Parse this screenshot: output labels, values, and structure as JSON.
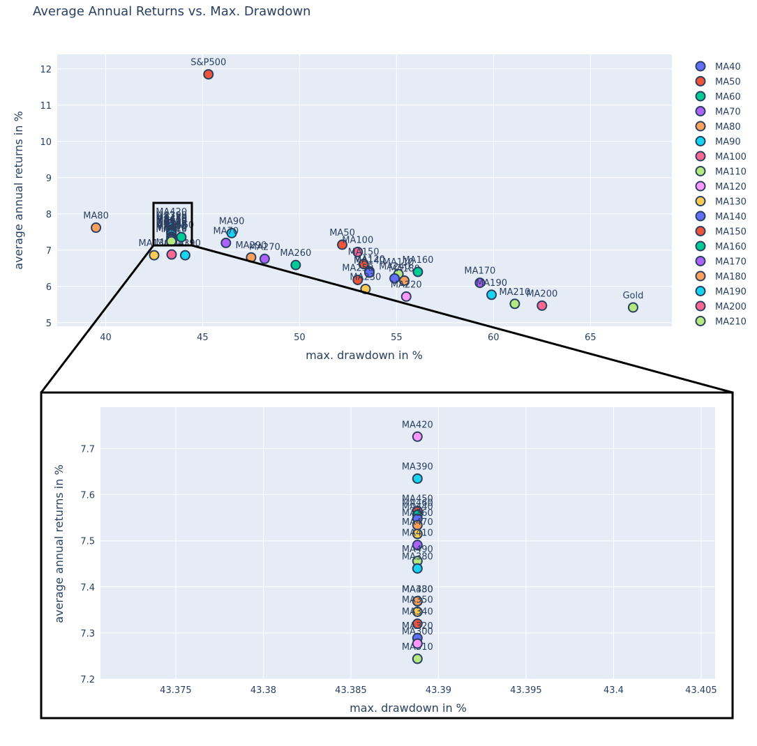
{
  "chart_data": [
    {
      "type": "scatter",
      "title": "Average Annual Returns vs. Max. Drawdown",
      "xlabel": "max. drawdown in %",
      "ylabel": "average annual returns in %",
      "xlim": [
        37.5,
        69.2
      ],
      "ylim": [
        4.9,
        12.4
      ],
      "xticks": [
        40,
        45,
        50,
        55,
        60,
        65
      ],
      "yticks": [
        5,
        6,
        7,
        8,
        9,
        10,
        11,
        12
      ],
      "grid": true,
      "legend_position": "right",
      "points": [
        {
          "label": "S&P500",
          "x": 45.3,
          "y": 11.85,
          "color": "#EF553B"
        },
        {
          "label": "MA80",
          "x": 39.5,
          "y": 7.62,
          "color": "#FFA15A"
        },
        {
          "label": "MA90",
          "x": 46.5,
          "y": 7.47,
          "color": "#19D3F3"
        },
        {
          "label": "MA70",
          "x": 46.2,
          "y": 7.2,
          "color": "#AB63FA"
        },
        {
          "label": "MA290",
          "x": 47.5,
          "y": 6.8,
          "color": "#FFA15A"
        },
        {
          "label": "MA270",
          "x": 48.2,
          "y": 6.76,
          "color": "#AB63FA"
        },
        {
          "label": "MA260",
          "x": 49.8,
          "y": 6.59,
          "color": "#00CC96"
        },
        {
          "label": "MA50",
          "x": 52.2,
          "y": 7.15,
          "color": "#EF553B"
        },
        {
          "label": "MA100",
          "x": 53.0,
          "y": 6.95,
          "color": "#FF6692"
        },
        {
          "label": "MA150",
          "x": 53.3,
          "y": 6.62,
          "color": "#EF553B"
        },
        {
          "label": "MA120",
          "x": 53.6,
          "y": 6.42,
          "color": "#FF97FF"
        },
        {
          "label": "MA140",
          "x": 53.6,
          "y": 6.38,
          "color": "#636EFA"
        },
        {
          "label": "MA250",
          "x": 53.0,
          "y": 6.18,
          "color": "#EF553B"
        },
        {
          "label": "MA230",
          "x": 53.4,
          "y": 5.93,
          "color": "#FECB52"
        },
        {
          "label": "MA110",
          "x": 55.1,
          "y": 6.34,
          "color": "#B6E880"
        },
        {
          "label": "MA240",
          "x": 54.9,
          "y": 6.22,
          "color": "#636EFA"
        },
        {
          "label": "MA180",
          "x": 55.4,
          "y": 6.16,
          "color": "#FFA15A"
        },
        {
          "label": "MA160",
          "x": 56.1,
          "y": 6.4,
          "color": "#00CC96"
        },
        {
          "label": "MA220",
          "x": 55.5,
          "y": 5.72,
          "color": "#FF97FF"
        },
        {
          "label": "MA170",
          "x": 59.3,
          "y": 6.1,
          "color": "#AB63FA"
        },
        {
          "label": "MA190",
          "x": 59.9,
          "y": 5.77,
          "color": "#19D3F3"
        },
        {
          "label": "MA210",
          "x": 61.1,
          "y": 5.52,
          "color": "#B6E880"
        },
        {
          "label": "MA200",
          "x": 62.5,
          "y": 5.47,
          "color": "#FF6692"
        },
        {
          "label": "Gold",
          "x": 67.2,
          "y": 5.42,
          "color": "#B6E880"
        },
        {
          "label": "MA130",
          "x": 42.5,
          "y": 6.86,
          "color": "#FECB52"
        },
        {
          "label": "MA200",
          "x": 43.4,
          "y": 6.88,
          "color": "#FF6692"
        },
        {
          "label": "MA390",
          "x": 44.1,
          "y": 6.86,
          "color": "#19D3F3"
        },
        {
          "label": "MA60",
          "x": 43.9,
          "y": 7.36,
          "color": "#00CC96"
        },
        {
          "label": "MA420",
          "x": 43.389,
          "y": 7.726,
          "color": "#FF97FF"
        },
        {
          "label": "MA390",
          "x": 43.389,
          "y": 7.635,
          "color": "#19D3F3"
        },
        {
          "label": "MA450",
          "x": 43.389,
          "y": 7.565,
          "color": "#EF553B"
        },
        {
          "label": "MA440",
          "x": 43.389,
          "y": 7.548,
          "color": "#636EFA"
        },
        {
          "label": "MA470",
          "x": 43.389,
          "y": 7.515,
          "color": "#FECB52"
        },
        {
          "label": "MA410",
          "x": 43.389,
          "y": 7.491,
          "color": "#AB63FA"
        },
        {
          "label": "MA490",
          "x": 43.389,
          "y": 7.456,
          "color": "#B6E880"
        },
        {
          "label": "MA190",
          "x": 43.389,
          "y": 7.44,
          "color": "#19D3F3"
        },
        {
          "label": "MA330",
          "x": 43.389,
          "y": 7.369,
          "color": "#FFA15A"
        },
        {
          "label": "MA350",
          "x": 43.389,
          "y": 7.346,
          "color": "#FECB52"
        },
        {
          "label": "MA340",
          "x": 43.389,
          "y": 7.32,
          "color": "#EF553B"
        },
        {
          "label": "MA320",
          "x": 43.389,
          "y": 7.289,
          "color": "#636EFA"
        },
        {
          "label": "MA310",
          "x": 43.389,
          "y": 7.244,
          "color": "#B6E880"
        }
      ],
      "zoom_box": {
        "x": [
          42.5,
          44.5
        ],
        "y": [
          7.1,
          8.3
        ]
      }
    },
    {
      "type": "scatter",
      "xlabel": "max. drawdown in %",
      "ylabel": "average annual returns in %",
      "xlim": [
        43.3707,
        43.4058
      ],
      "ylim": [
        7.2,
        7.79
      ],
      "xticks": [
        43.375,
        43.38,
        43.385,
        43.39,
        43.395,
        43.4,
        43.405
      ],
      "yticks": [
        7.2,
        7.3,
        7.4,
        7.5,
        7.6,
        7.7
      ],
      "grid": true,
      "points": [
        {
          "label": "MA420",
          "x": 43.3888,
          "y": 7.726,
          "color": "#FF97FF"
        },
        {
          "label": "MA390",
          "x": 43.3888,
          "y": 7.635,
          "color": "#19D3F3"
        },
        {
          "label": "MA450",
          "x": 43.3888,
          "y": 7.565,
          "color": "#EF553B"
        },
        {
          "label": "MA460",
          "x": 43.3888,
          "y": 7.556,
          "color": "#00CC96"
        },
        {
          "label": "MA440",
          "x": 43.3888,
          "y": 7.548,
          "color": "#636EFA"
        },
        {
          "label": "MA360",
          "x": 43.3888,
          "y": 7.534,
          "color": "#FFA15A"
        },
        {
          "label": "MA470",
          "x": 43.3888,
          "y": 7.515,
          "color": "#FECB52"
        },
        {
          "label": "MA410",
          "x": 43.3888,
          "y": 7.491,
          "color": "#AB63FA"
        },
        {
          "label": "MA490",
          "x": 43.3888,
          "y": 7.456,
          "color": "#B6E880"
        },
        {
          "label": "MA380",
          "x": 43.3888,
          "y": 7.44,
          "color": "#19D3F3"
        },
        {
          "label": "MA480",
          "x": 43.3888,
          "y": 7.369,
          "color": "#FFA15A"
        },
        {
          "label": "MA330",
          "x": 43.3888,
          "y": 7.369,
          "color": "#FFA15A"
        },
        {
          "label": "MA350",
          "x": 43.3888,
          "y": 7.346,
          "color": "#FECB52"
        },
        {
          "label": "MA340",
          "x": 43.3888,
          "y": 7.32,
          "color": "#EF553B"
        },
        {
          "label": "MA320",
          "x": 43.3888,
          "y": 7.289,
          "color": "#636EFA"
        },
        {
          "label": "MA310",
          "x": 43.3888,
          "y": 7.244,
          "color": "#B6E880"
        },
        {
          "label": "MA300",
          "x": 43.3888,
          "y": 7.277,
          "color": "#FF97FF"
        }
      ]
    }
  ],
  "legend": [
    {
      "name": "MA40",
      "color": "#636EFA"
    },
    {
      "name": "MA50",
      "color": "#EF553B"
    },
    {
      "name": "MA60",
      "color": "#00CC96"
    },
    {
      "name": "MA70",
      "color": "#AB63FA"
    },
    {
      "name": "MA80",
      "color": "#FFA15A"
    },
    {
      "name": "MA90",
      "color": "#19D3F3"
    },
    {
      "name": "MA100",
      "color": "#FF6692"
    },
    {
      "name": "MA110",
      "color": "#B6E880"
    },
    {
      "name": "MA120",
      "color": "#FF97FF"
    },
    {
      "name": "MA130",
      "color": "#FECB52"
    },
    {
      "name": "MA140",
      "color": "#636EFA"
    },
    {
      "name": "MA150",
      "color": "#EF553B"
    },
    {
      "name": "MA160",
      "color": "#00CC96"
    },
    {
      "name": "MA170",
      "color": "#AB63FA"
    },
    {
      "name": "MA180",
      "color": "#FFA15A"
    },
    {
      "name": "MA190",
      "color": "#19D3F3"
    },
    {
      "name": "MA200",
      "color": "#FF6692"
    },
    {
      "name": "MA210",
      "color": "#B6E880"
    }
  ],
  "colors": {
    "plot_bg": "#E5ECF6",
    "text": "#2a3f5f",
    "marker_outline": "#2a3f5f"
  }
}
